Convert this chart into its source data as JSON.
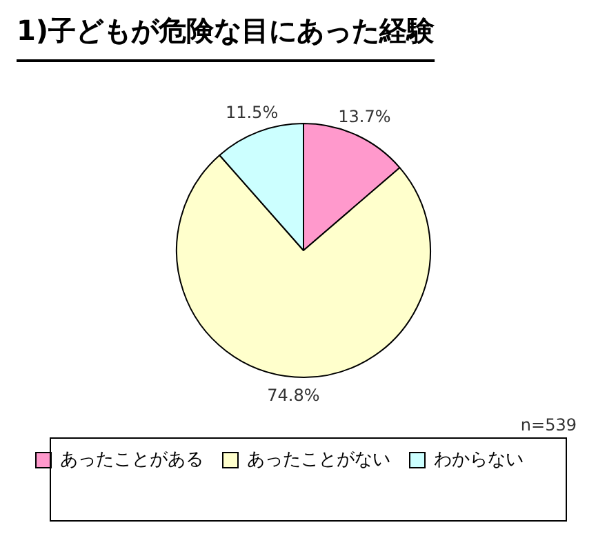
{
  "chart_data": {
    "type": "pie",
    "title": "1)子どもが危険な目にあった経験",
    "categories": [
      "あったことがある",
      "あったことがない",
      "わからない"
    ],
    "values": [
      13.7,
      74.8,
      11.5
    ],
    "colors": [
      "#ff99cc",
      "#ffffcc",
      "#ccffff"
    ],
    "value_labels": [
      "13.7%",
      "74.8%",
      "11.5%"
    ],
    "annotations": [
      "n=539"
    ],
    "legend": "bottom"
  }
}
